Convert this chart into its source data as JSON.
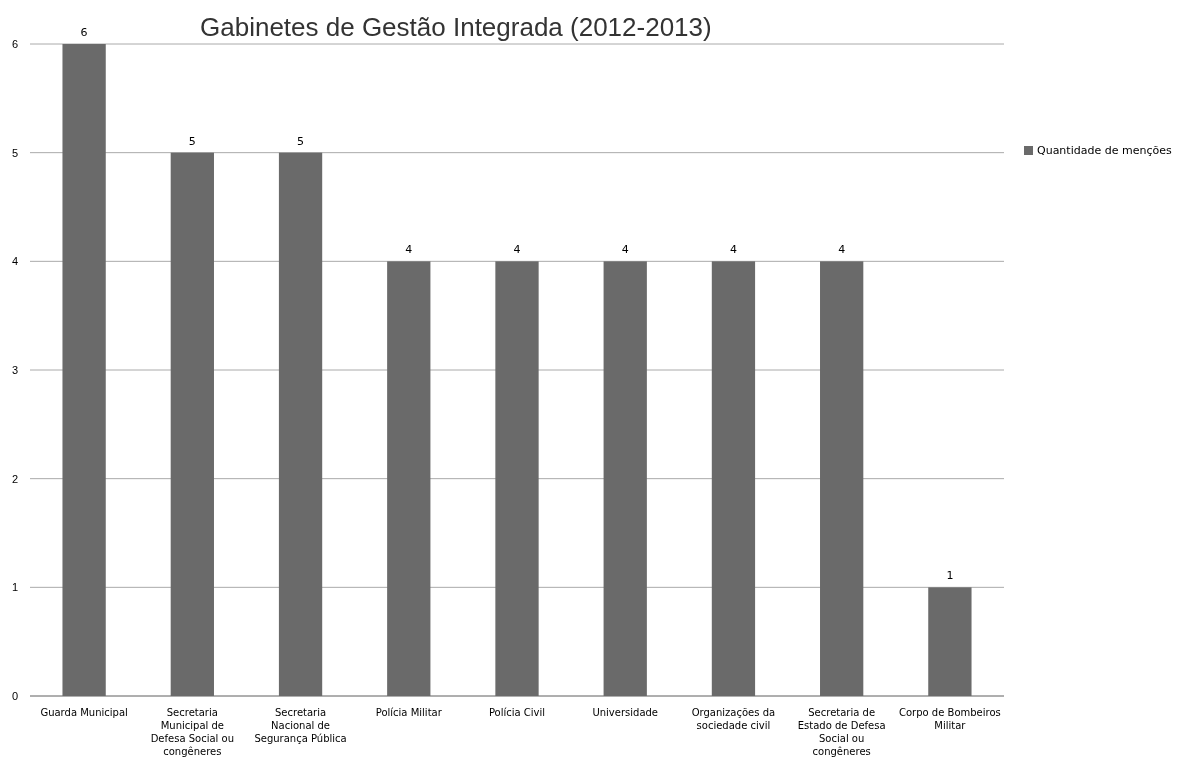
{
  "chart_data": {
    "type": "bar",
    "title": "Gabinetes de Gestão Integrada  (2012-2013)",
    "categories": [
      "Guarda Municipal",
      "Secretaria Municipal de Defesa Social ou congêneres",
      "Secretaria Nacional de Segurança Pública",
      "Polícia Militar",
      "Polícia Civil",
      "Universidade",
      "Organizações da sociedade civil",
      "Secretaria de Estado de Defesa Social ou congêneres",
      "Corpo de Bombeiros Militar"
    ],
    "series": [
      {
        "name": "Quantidade de menções",
        "color": "#6a6a6a",
        "values": [
          6,
          5,
          5,
          4,
          4,
          4,
          4,
          4,
          1
        ]
      }
    ],
    "ylim": [
      0,
      6
    ],
    "yticks": [
      0,
      1,
      2,
      3,
      4,
      5,
      6
    ],
    "grid": "y",
    "legend": "right",
    "data_labels": true
  }
}
